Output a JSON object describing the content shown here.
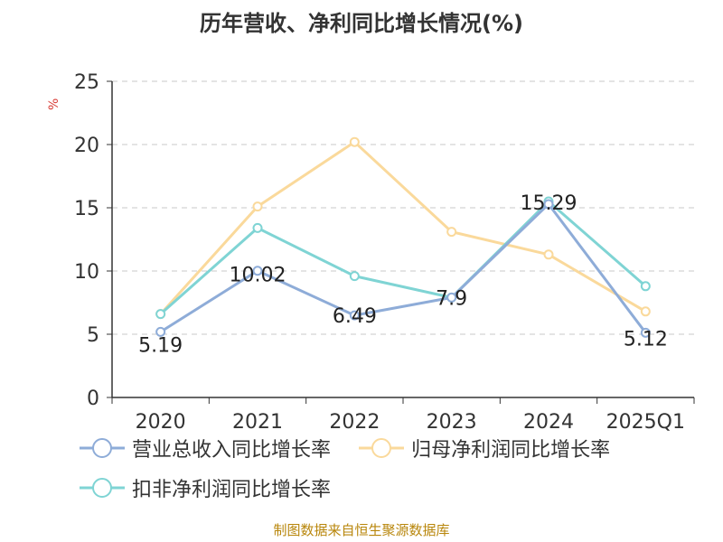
{
  "title": "历年营收、净利同比增长情况(%)",
  "source": "制图数据来自恒生聚源数据库",
  "colors": {
    "revenue": "#8eacd8",
    "net_profit": "#fad99b",
    "deducted_profit": "#7fd4d4",
    "grid": "#c8c8c8",
    "axis": "#333333",
    "unit": "#d9403a"
  },
  "chart_data": {
    "type": "line",
    "title": "历年营收、净利同比增长情况(%)",
    "ylabel": "%",
    "xlabel": "",
    "ylim": [
      0,
      25
    ],
    "yticks": [
      "0",
      "5",
      "10",
      "15",
      "20",
      "25"
    ],
    "categories": [
      "2020",
      "2021",
      "2022",
      "2023",
      "2024",
      "2025Q1"
    ],
    "grid": true,
    "legend_position": "bottom",
    "series": [
      {
        "name": "营业总收入同比增长率",
        "color_key": "revenue",
        "values": [
          5.19,
          10.02,
          6.49,
          7.9,
          15.29,
          5.12
        ],
        "labels": [
          "5.19",
          "10.02",
          "6.49",
          "7.9",
          "15.29",
          "5.12"
        ]
      },
      {
        "name": "归母净利润同比增长率",
        "color_key": "net_profit",
        "values": [
          6.6,
          15.1,
          20.2,
          13.1,
          11.3,
          6.8
        ]
      },
      {
        "name": "扣非净利润同比增长率",
        "color_key": "deducted_profit",
        "values": [
          6.6,
          13.4,
          9.6,
          7.9,
          15.5,
          8.8
        ]
      }
    ]
  }
}
